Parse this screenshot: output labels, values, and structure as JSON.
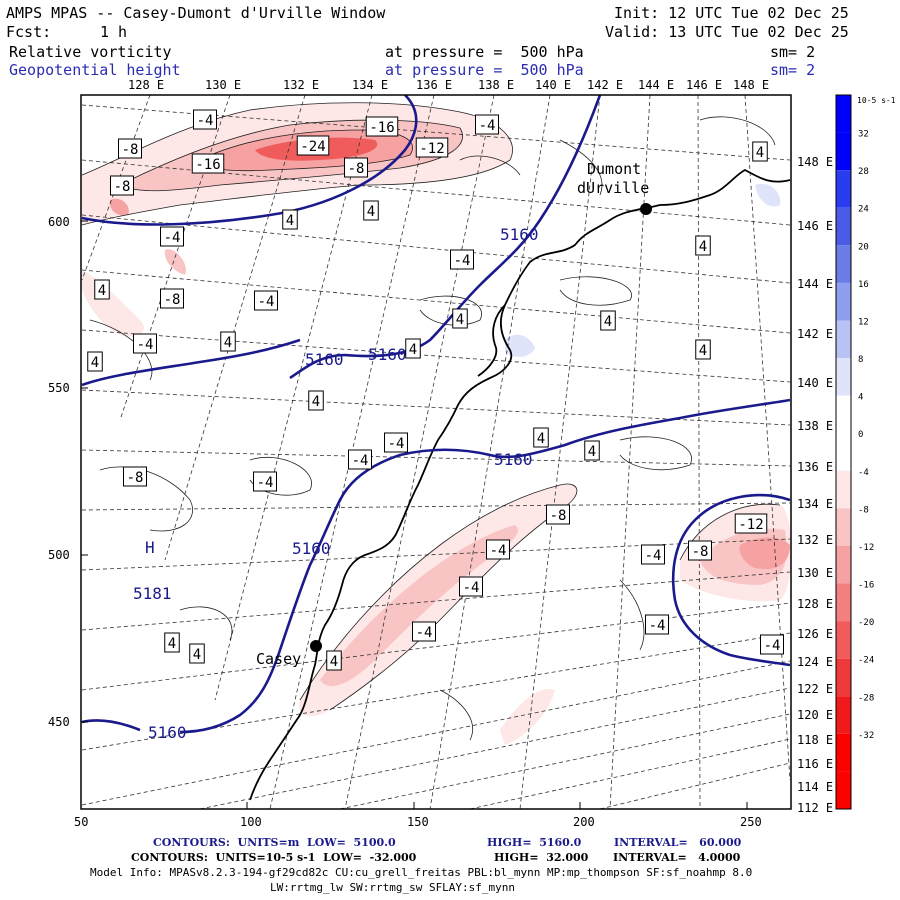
{
  "header": {
    "title": "AMPS MPAS -- Casey-Dumont d'Urville Window",
    "fcst_label": "Fcst:",
    "fcst_value": "1 h",
    "init": "Init: 12 UTC Tue 02 Dec 25",
    "valid": "Valid: 13 UTC Tue 02 Dec 25",
    "field1": "Relative vorticity",
    "field1_level": "at pressure =  500 hPa",
    "field1_sm": "sm= 2",
    "field2": "Geopotential height",
    "field2_level": "at pressure =  500 hPa",
    "field2_sm": "sm= 2"
  },
  "map": {
    "top_lon_labels": [
      "128 E",
      "130 E",
      "132 E",
      "134 E",
      "136 E",
      "138 E",
      "140 E",
      "142 E",
      "144 E",
      "146 E",
      "148 E"
    ],
    "right_lon_labels": [
      "148 E",
      "146 E",
      "144 E",
      "142 E",
      "140 E",
      "138 E",
      "136 E",
      "134 E",
      "132 E",
      "130 E",
      "128 E",
      "126 E",
      "124 E",
      "122 E",
      "120 E",
      "118 E",
      "116 E",
      "114 E",
      "112 E"
    ],
    "y_labels": [
      "600",
      "550",
      "500",
      "450"
    ],
    "x_labels": [
      "50",
      "100",
      "150",
      "200",
      "250"
    ],
    "stations": [
      {
        "name": "Dumont",
        "name2": "dUrville"
      },
      {
        "name": "Casey"
      }
    ],
    "high_label": "H",
    "high_value": "5181",
    "height_labels": [
      "5160",
      "5160",
      "5160",
      "5160",
      "5160",
      "5160"
    ],
    "vort_labels": [
      "-4",
      "-16",
      "-4",
      "-24",
      "-12",
      "-8",
      "-8",
      "-16",
      "-8",
      "4",
      "4",
      "4",
      "-4",
      "-4",
      "4",
      "-8",
      "-4",
      "4",
      "4",
      "4",
      "-4",
      "4",
      "4",
      "4",
      "4",
      "4",
      "-4",
      "4",
      "4",
      "-4",
      "-4",
      "-8",
      "-8",
      "-4",
      "-4",
      "-12",
      "-8",
      "-4",
      "-4",
      "-4",
      "-4",
      "4",
      "4",
      "4"
    ]
  },
  "colorbar": {
    "unit": "10-5 s-1",
    "labels": [
      "32",
      "28",
      "24",
      "20",
      "16",
      "12",
      "8",
      "4",
      "0",
      "-4",
      "-8",
      "-12",
      "-16",
      "-20",
      "-24",
      "-28",
      "-32"
    ],
    "colors": [
      "#0000ff",
      "#2a3cf0",
      "#4a5ce6",
      "#6a7ce6",
      "#8f9ff0",
      "#b8c2f5",
      "#dfe4fb",
      "#ffffff",
      "#ffffff",
      "#fde7e7",
      "#f9c4c4",
      "#f6a2a2",
      "#f37f7f",
      "#f05c5c",
      "#ee3a3a",
      "#f01a1a",
      "#ff0000"
    ]
  },
  "footer": {
    "line1a": "CONTOURS:  UNITS=m  LOW=  5100.0",
    "line1b": "HIGH=  5160.0",
    "line1c": "INTERVAL=   60.000",
    "line2a": "CONTOURS:  UNITS=10-5 s-1  LOW=  -32.000",
    "line2b": "HIGH=  32.000",
    "line2c": "INTERVAL=   4.0000",
    "model_info": "Model Info: MPASv8.2.3-194-gf29cd82c CU:cu_grell_freitas PBL:bl_mynn MP:mp_thompson SF:sf_noahmp 8.0",
    "model_info2": "LW:rrtmg_lw SW:rrtmg_sw SFLAY:sf_mynn"
  }
}
